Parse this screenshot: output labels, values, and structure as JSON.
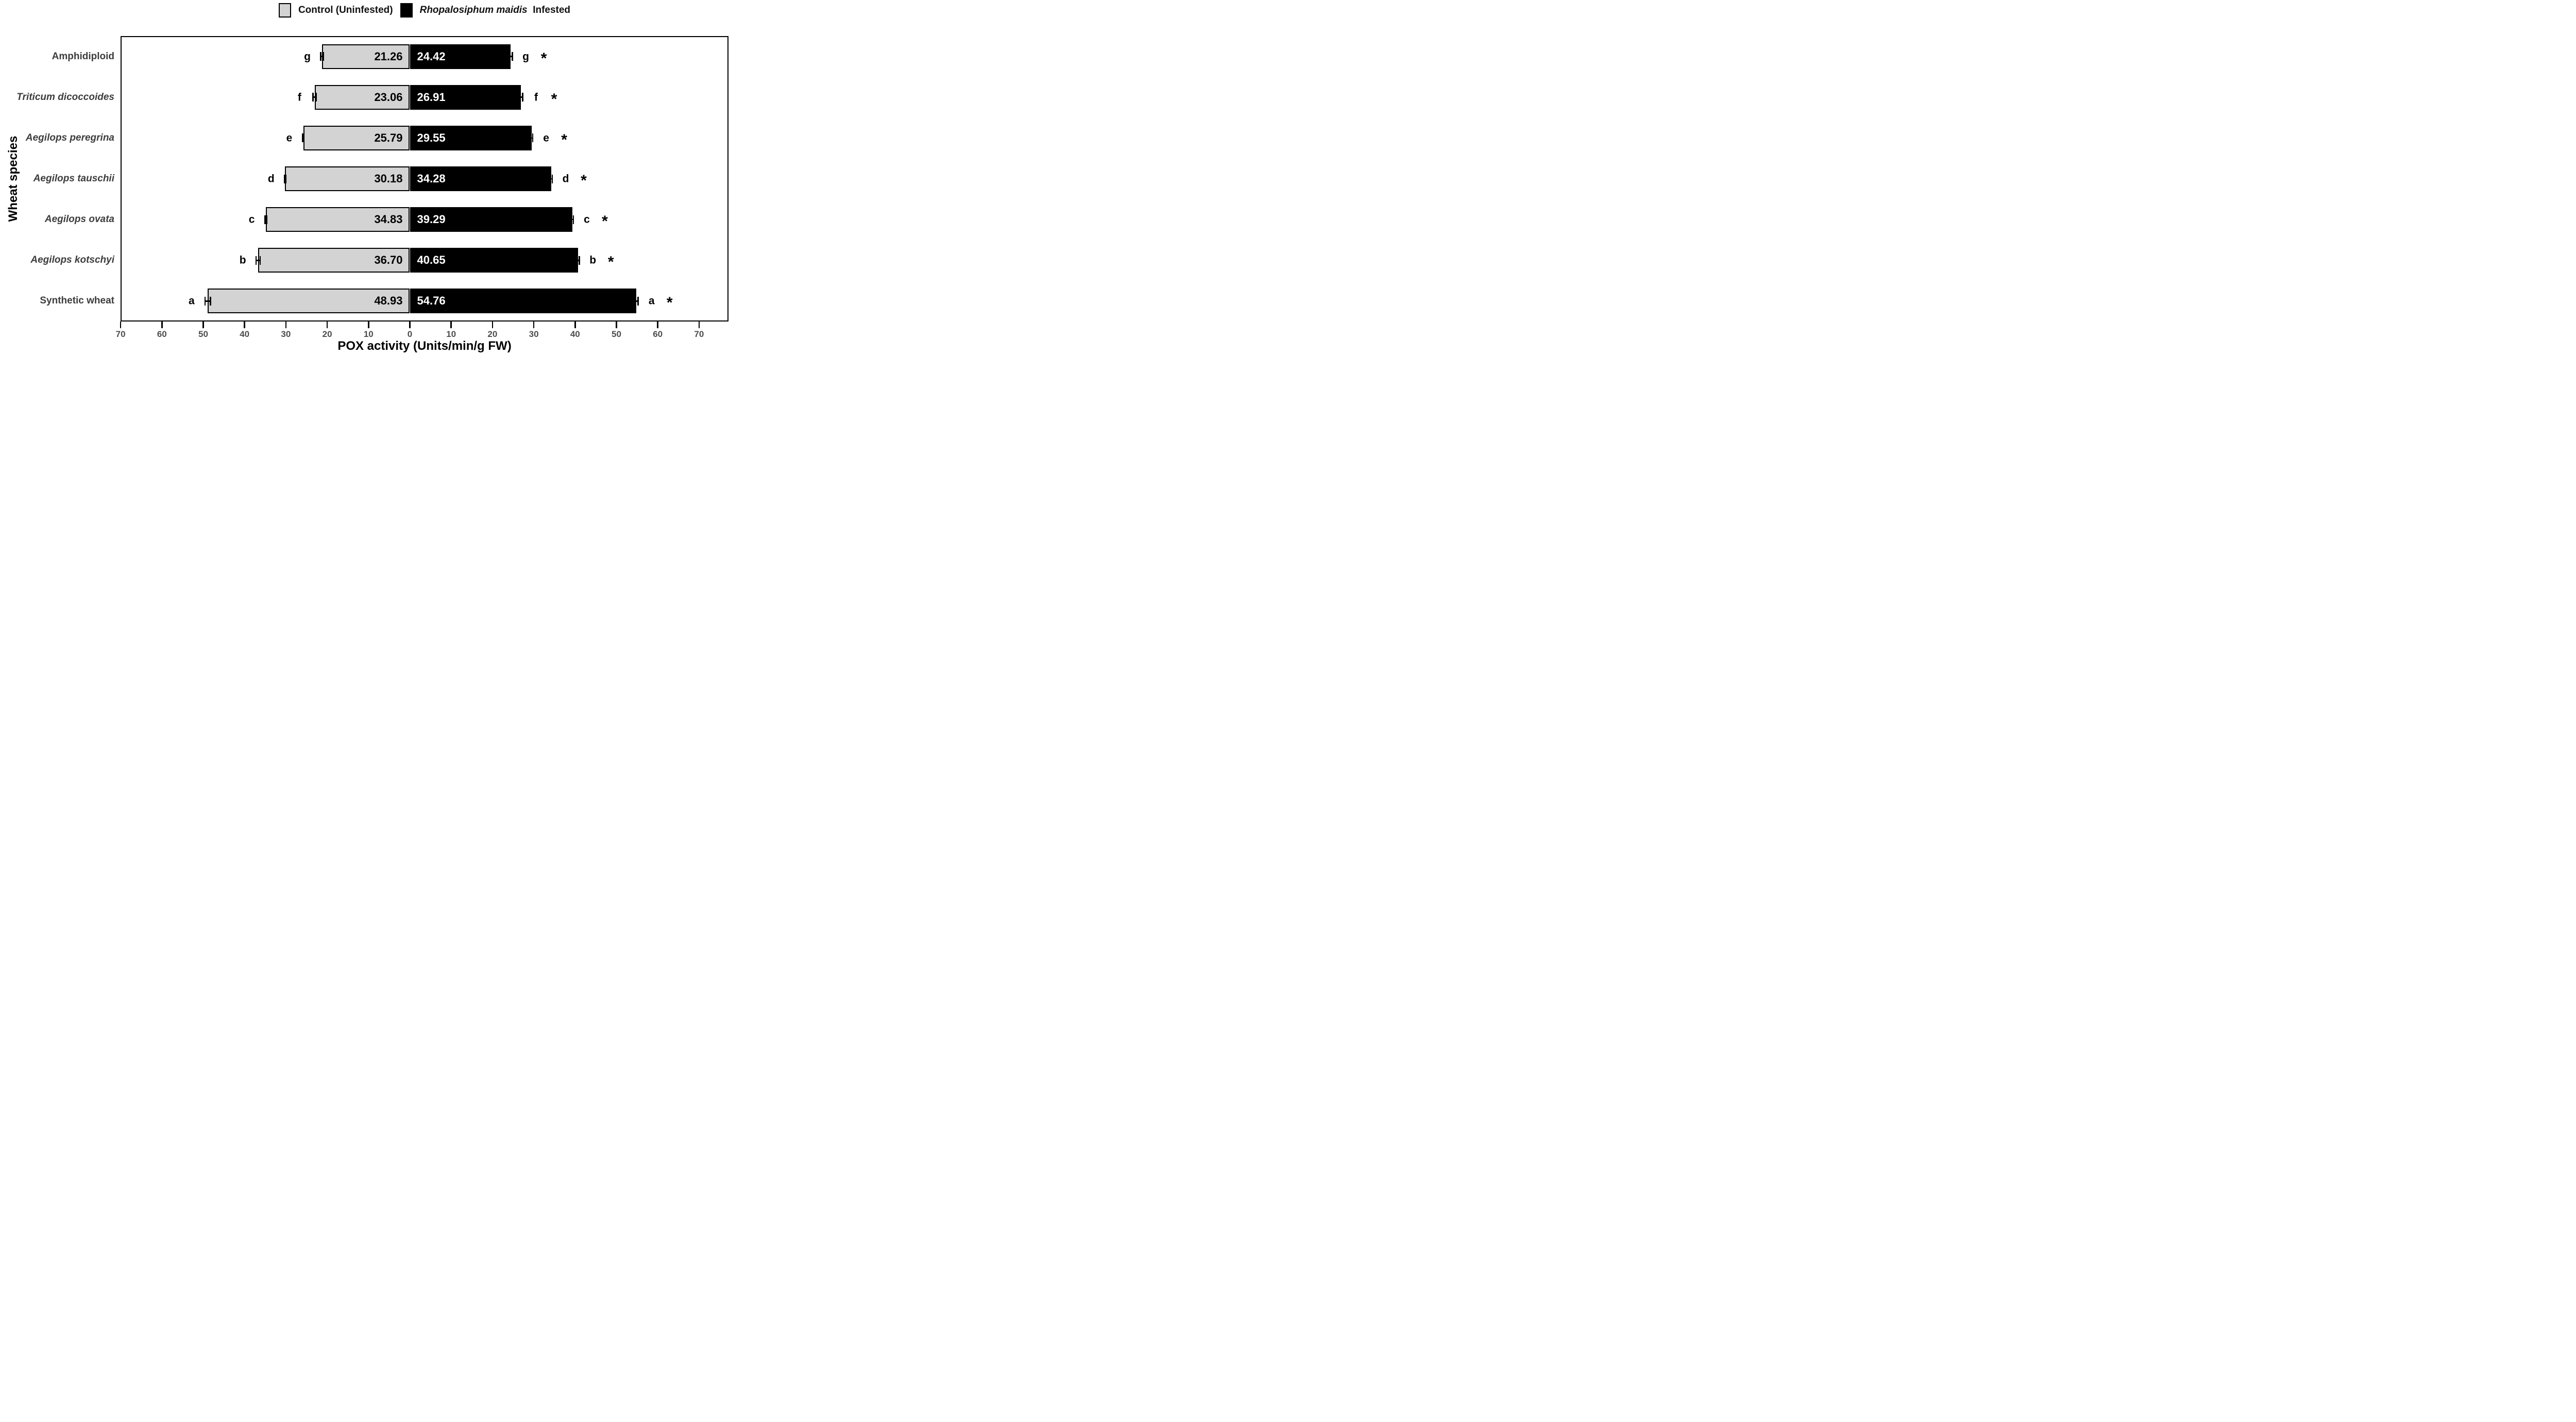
{
  "legend": {
    "control_label": "Control (Uninfested)",
    "infested_species": "Rhopalosiphum maidis",
    "infested_suffix": "Infested"
  },
  "colors": {
    "control_fill": "#d3d3d3",
    "infested_fill": "#000000",
    "bar_border": "#000000",
    "plot_border": "#000000",
    "tick_label": "#4d4d4d",
    "category_label": "#3d3d3d",
    "control_value_text": "#000000",
    "infested_value_text": "#ffffff"
  },
  "chart_data": {
    "type": "bar",
    "variant": "horizontal-diverging",
    "title": "",
    "xlabel": "POX activity (Units/min/g FW)",
    "ylabel": "Wheat species",
    "categories": [
      "Amphidiploid",
      "Triticum dicoccoides",
      "Aegilops peregrina",
      "Aegilops tauschii",
      "Aegilops ovata",
      "Aegilops kotschyi",
      "Synthetic wheat"
    ],
    "categories_italic": [
      false,
      true,
      true,
      true,
      true,
      true,
      false
    ],
    "series": [
      {
        "name": "Control (Uninfested)",
        "side": "left",
        "fill": "#d3d3d3",
        "values": [
          21.26,
          23.06,
          25.79,
          30.18,
          34.83,
          36.7,
          48.93
        ],
        "value_labels": [
          "21.26",
          "23.06",
          "25.79",
          "30.18",
          "34.83",
          "36.70",
          "48.93"
        ],
        "errors": [
          0.3,
          0.4,
          0.15,
          0.15,
          0.2,
          0.5,
          0.65
        ]
      },
      {
        "name": "Rhopalosiphum maidis Infested",
        "side": "right",
        "fill": "#000000",
        "values": [
          24.42,
          26.91,
          29.55,
          34.28,
          39.29,
          40.65,
          54.76
        ],
        "value_labels": [
          "24.42",
          "26.91",
          "29.55",
          "34.28",
          "39.29",
          "40.65",
          "54.76"
        ],
        "errors": [
          0.4,
          0.4,
          0.2,
          0.2,
          0.3,
          0.4,
          0.5
        ]
      }
    ],
    "significance_letters": [
      "g",
      "f",
      "e",
      "d",
      "c",
      "b",
      "a"
    ],
    "infested_marker": "*",
    "x_tick_values": [
      -70,
      -60,
      -50,
      -40,
      -30,
      -20,
      -10,
      0,
      10,
      20,
      30,
      40,
      50,
      60,
      70
    ],
    "x_tick_labels": [
      "70",
      "60",
      "50",
      "40",
      "30",
      "20",
      "10",
      "0",
      "10",
      "20",
      "30",
      "40",
      "50",
      "60",
      "70"
    ],
    "xlim": [
      -70,
      77
    ],
    "grid": false,
    "legend_position": "top-center"
  }
}
